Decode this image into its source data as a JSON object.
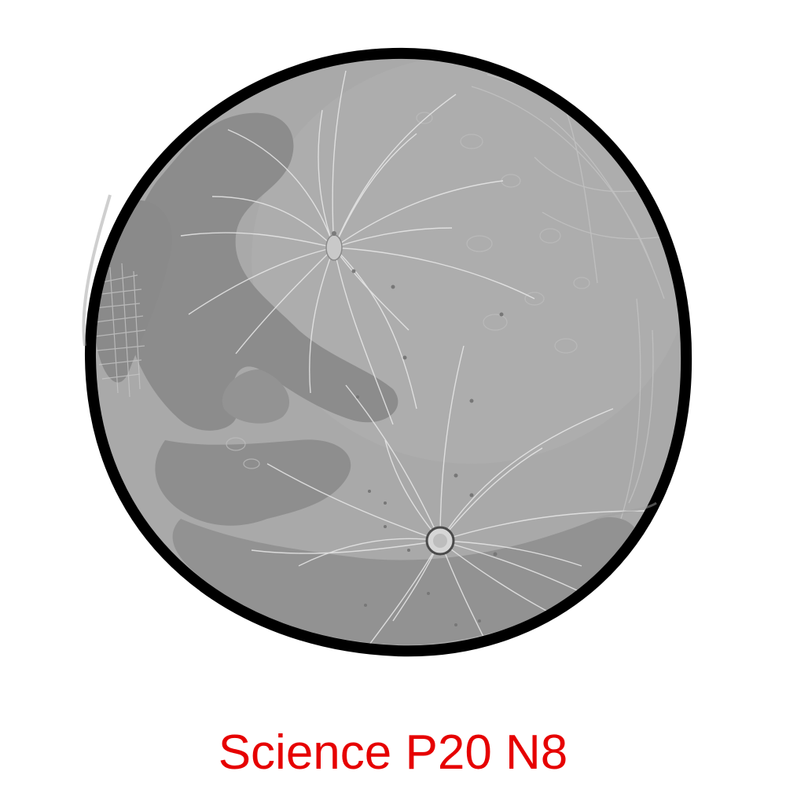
{
  "caption": "Science P20 N8",
  "colors": {
    "caption": "#e60000",
    "moon_base": "#a9a9a9",
    "maria_dark": "#8a8a8a",
    "maria_mid": "#979797",
    "rays": "#e8e8e8",
    "outline": "#000000"
  },
  "illustration": {
    "subject": "moon-icon",
    "features": [
      "maria",
      "ray-crater-upper",
      "ray-crater-lower",
      "sketch-hatching"
    ]
  }
}
